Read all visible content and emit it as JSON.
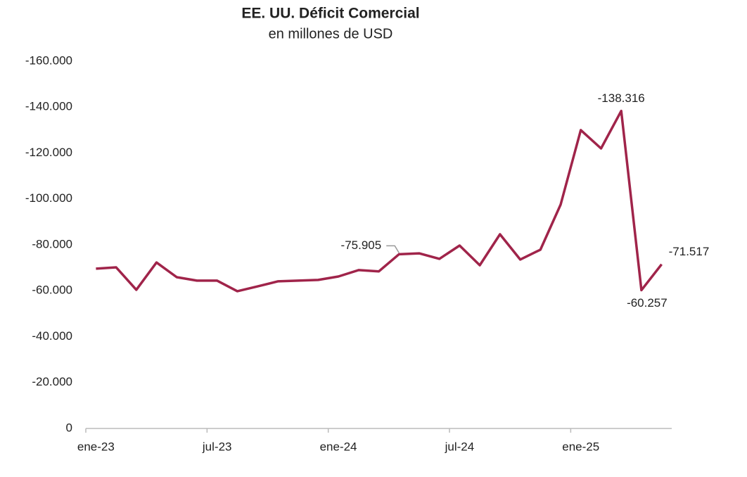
{
  "chart_data": {
    "type": "line",
    "title": "EE. UU. Déficit Comercial",
    "subtitle": "en millones de USD",
    "categories": [
      "ene-23",
      null,
      null,
      null,
      null,
      null,
      "jul-23",
      null,
      null,
      null,
      null,
      null,
      "ene-24",
      null,
      null,
      null,
      null,
      null,
      "jul-24",
      null,
      null,
      null,
      null,
      null,
      "ene-25",
      null,
      null,
      null,
      null
    ],
    "series": [
      {
        "name": "Déficit Comercial",
        "color": "#a0244a",
        "values": [
          -69600,
          -70200,
          -60400,
          -72300,
          -65900,
          -64400,
          -64400,
          -59800,
          -61900,
          -64100,
          -64400,
          -64700,
          -66200,
          -69000,
          -68400,
          -75905,
          -76300,
          -73900,
          -79700,
          -71100,
          -84600,
          -73600,
          -77900,
          -97500,
          -130000,
          -122000,
          -138316,
          -60257,
          -71517
        ],
        "value_labels": [
          null,
          null,
          null,
          null,
          null,
          null,
          null,
          null,
          null,
          null,
          null,
          null,
          null,
          null,
          null,
          "-75.905",
          null,
          null,
          null,
          null,
          null,
          null,
          null,
          null,
          null,
          null,
          "-138.316",
          "-60.257",
          "-71.517"
        ]
      }
    ],
    "ylim": [
      0,
      -160000
    ],
    "yticks": [
      0,
      {
        "value": -20000,
        "label": "-20.000"
      },
      {
        "value": -40000,
        "label": "-40.000"
      },
      {
        "value": -60000,
        "label": "-60.000"
      },
      {
        "value": -80000,
        "label": "-80.000"
      },
      {
        "value": -100000,
        "label": "-100.000"
      },
      {
        "value": -120000,
        "label": "-120.000"
      },
      {
        "value": -140000,
        "label": "-140.000"
      },
      {
        "value": -160000,
        "label": "-160.000"
      }
    ],
    "grid": false
  }
}
